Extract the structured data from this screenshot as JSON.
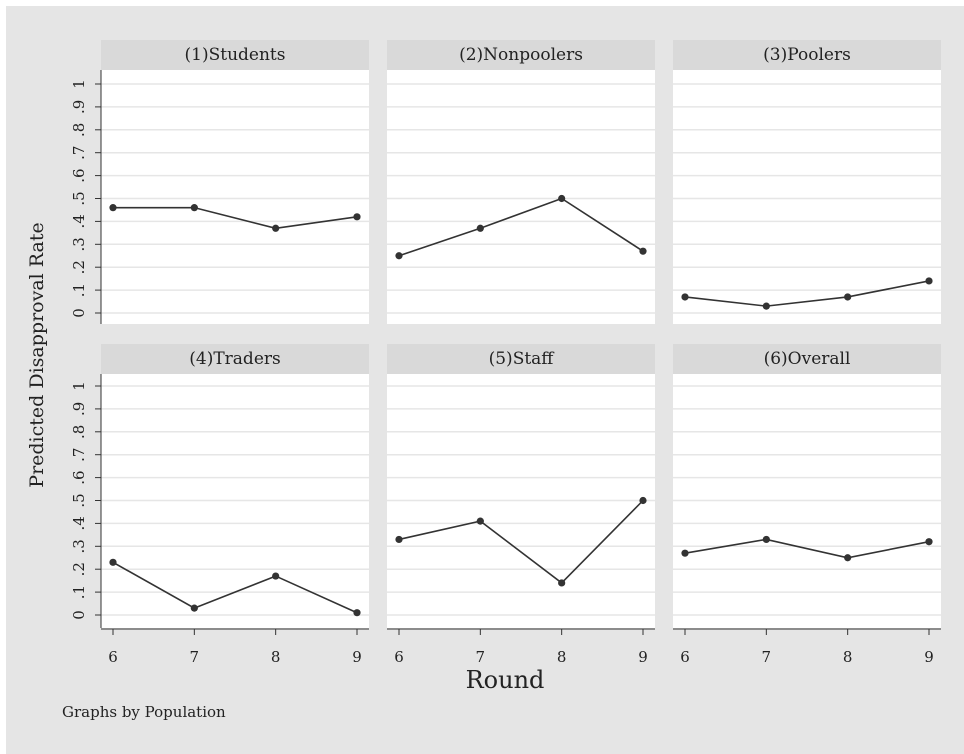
{
  "chart_data": {
    "type": "line",
    "ylabel": "Predicted Disapproval Rate",
    "xlabel": "Round",
    "note": "Graphs by Population",
    "x": [
      6,
      7,
      8,
      9
    ],
    "xticks": [
      "6",
      "7",
      "8",
      "9"
    ],
    "yticks": [
      "0",
      ".1",
      ".2",
      ".3",
      ".4",
      ".5",
      ".6",
      ".7",
      ".8",
      ".9",
      "1"
    ],
    "ylim": [
      0,
      1
    ],
    "grid": true,
    "panels": [
      {
        "title": "(1)Students",
        "values": [
          0.46,
          0.46,
          0.37,
          0.42
        ]
      },
      {
        "title": "(2)Nonpoolers",
        "values": [
          0.25,
          0.37,
          0.5,
          0.27
        ]
      },
      {
        "title": "(3)Poolers",
        "values": [
          0.07,
          0.03,
          0.07,
          0.14
        ]
      },
      {
        "title": "(4)Traders",
        "values": [
          0.23,
          0.03,
          0.17,
          0.01
        ]
      },
      {
        "title": "(5)Staff",
        "values": [
          0.33,
          0.41,
          0.14,
          0.5
        ]
      },
      {
        "title": "(6)Overall",
        "values": [
          0.27,
          0.33,
          0.25,
          0.32
        ]
      }
    ]
  }
}
